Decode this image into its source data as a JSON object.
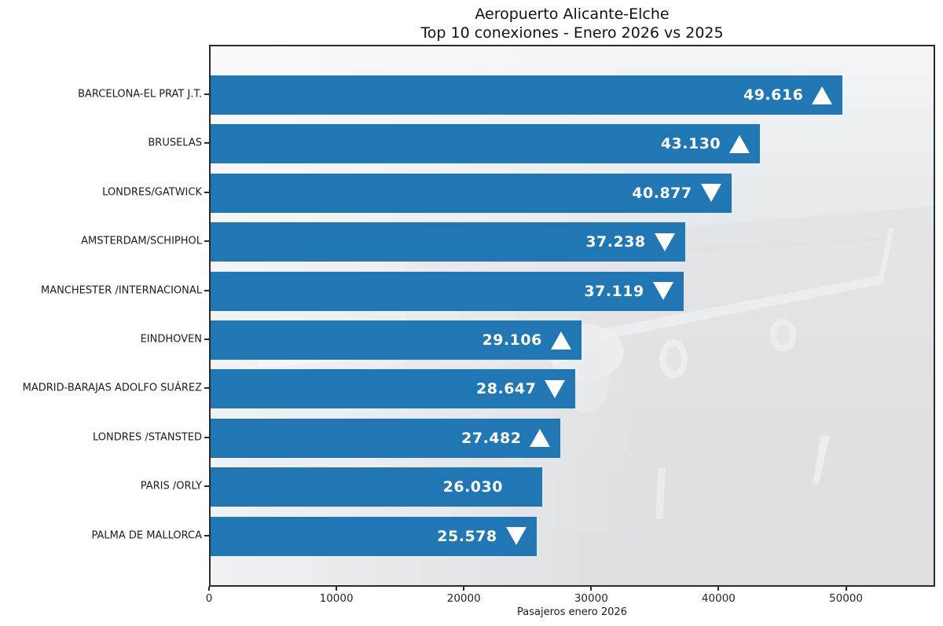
{
  "title": {
    "line1": "Aeropuerto Alicante-Elche",
    "line2": "Top 10 conexiones - Enero 2026 vs 2025"
  },
  "chart_data": {
    "type": "bar",
    "orientation": "horizontal",
    "title": "Aeropuerto Alicante-Elche — Top 10 conexiones - Enero 2026 vs 2025",
    "xlabel": "Pasajeros enero 2026",
    "ylabel": "",
    "xlim": [
      0,
      57000
    ],
    "xticks": [
      0,
      10000,
      20000,
      30000,
      40000,
      50000
    ],
    "grid": false,
    "legend": "none",
    "bar_color": "#2176b4",
    "value_text_color": "#ffffff",
    "trend_icon_color": "#ffffff",
    "plot_border_color": "#2b2b2b",
    "categories": [
      "BARCELONA-EL PRAT J.T.",
      "BRUSELAS",
      "LONDRES/GATWICK",
      "AMSTERDAM/SCHIPHOL",
      "MANCHESTER /INTERNACIONAL",
      "EINDHOVEN",
      "MADRID-BARAJAS ADOLFO SUÁREZ",
      "LONDRES /STANSTED",
      "PARIS /ORLY",
      "PALMA DE MALLORCA"
    ],
    "values": [
      49616,
      43130,
      40877,
      37238,
      37119,
      29106,
      28647,
      27482,
      26030,
      25578
    ],
    "value_labels": [
      "49.616",
      "43.130",
      "40.877",
      "37.238",
      "37.119",
      "29.106",
      "28.647",
      "27.482",
      "26.030",
      "25.578"
    ],
    "trends": [
      "up",
      "up",
      "down",
      "down",
      "down",
      "up",
      "down",
      "up",
      "none",
      "down"
    ],
    "background_image": "faded-airplane-on-runway"
  }
}
